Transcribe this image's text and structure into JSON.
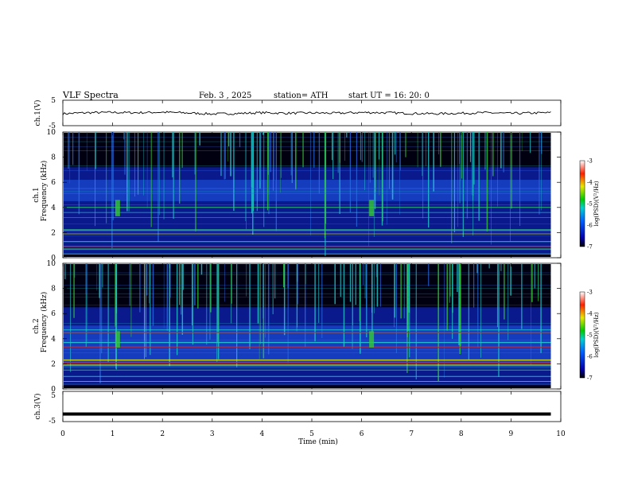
{
  "header": {
    "title": "VLF  Spectra",
    "date": "Feb. 3  , 2025",
    "station": "station= ATH",
    "start": "start  UT  =   16: 20: 0"
  },
  "chart_data": [
    {
      "type": "line",
      "name": "ch1-waveform",
      "ylabel": "ch.1(V)",
      "ylim": [
        -5,
        5
      ],
      "yticks": [
        "5",
        "-5"
      ],
      "xlim": [
        0,
        10
      ],
      "x": [
        0,
        0.5,
        1,
        1.5,
        2,
        2.5,
        3,
        3.5,
        4,
        4.5,
        5,
        5.5,
        6,
        6.5,
        7,
        7.5,
        8,
        8.5,
        9,
        9.5,
        9.8
      ],
      "y": [
        -0.3,
        0.1,
        0.2,
        0.1,
        0.3,
        0.0,
        -0.4,
        -0.2,
        0.1,
        -0.1,
        0.0,
        -0.1,
        0.2,
        0.1,
        -0.2,
        -0.3,
        -0.1,
        0.1,
        -0.2,
        0.0,
        0.1
      ]
    },
    {
      "type": "heatmap",
      "name": "ch1-spectrogram",
      "ylabel": "ch.1\nFrequency  (kHz)",
      "ylim": [
        0,
        10
      ],
      "yticks": [
        "0",
        "2",
        "4",
        "6",
        "8",
        "10"
      ],
      "xlim": [
        0,
        10
      ],
      "colorbar": {
        "label": "log(PSD)(V²/Hz)",
        "range": [
          -7,
          -3
        ],
        "ticks": [
          "-3",
          "-4",
          "-5",
          "-6",
          "-7"
        ]
      }
    },
    {
      "type": "heatmap",
      "name": "ch2-spectrogram",
      "ylabel": "ch.2\nFrequency  (kHz)",
      "ylim": [
        0,
        10
      ],
      "yticks": [
        "0",
        "2",
        "4",
        "6",
        "8",
        "10"
      ],
      "xlim": [
        0,
        10
      ],
      "colorbar": {
        "label": "log(PSD)(V²/Hz)",
        "range": [
          -7,
          -3
        ],
        "ticks": [
          "-3",
          "-4",
          "-5",
          "-6",
          "-7"
        ]
      }
    },
    {
      "type": "line",
      "name": "ch3-waveform",
      "ylabel": "ch.3(V)",
      "ylim": [
        -5,
        5
      ],
      "yticks": [
        "5",
        "-5"
      ],
      "xlim": [
        0,
        10
      ],
      "x": [
        0,
        9.8
      ],
      "y": [
        -2.5,
        -2.5
      ]
    }
  ],
  "xaxis": {
    "label": "Time  (min)",
    "ticks": [
      "0",
      "1",
      "2",
      "3",
      "4",
      "5",
      "6",
      "7",
      "8",
      "9",
      "10"
    ]
  },
  "labels": {
    "ch1": "ch.1(V)",
    "ch1_spec_a": "ch.1",
    "ch1_spec_b": "Frequency  (kHz)",
    "ch2_spec_a": "ch.2",
    "ch2_spec_b": "Frequency  (kHz)",
    "ch3": "ch.3(V)",
    "cb_label": "log(PSD)(V²/Hz)"
  },
  "colors": {
    "background": "#000010",
    "floor": "#0a1a8c",
    "band_hot": "#e8e800",
    "band_red": "#cc2222",
    "cyan": "#22d0d0",
    "green": "#33cc33",
    "trace": "#000000"
  }
}
